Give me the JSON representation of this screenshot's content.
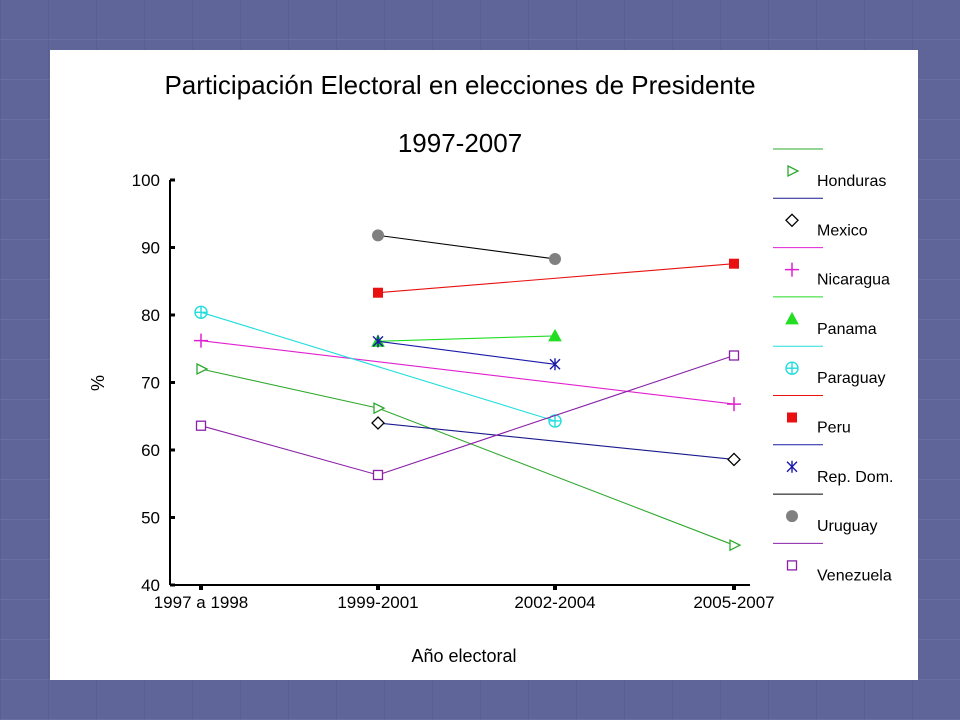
{
  "chart_data": {
    "type": "line",
    "title": "Participación Electoral en elecciones de Presidente",
    "subtitle": "1997-2007",
    "xlabel": "Año electoral",
    "ylabel": "%",
    "categories": [
      "1997 a 1998",
      "1999-2001",
      "2002-2004",
      "2005-2007"
    ],
    "ylim": [
      40,
      100
    ],
    "yticks": [
      40,
      50,
      60,
      70,
      80,
      90,
      100
    ],
    "grid": false,
    "legend_position": "right",
    "series": [
      {
        "name": "Honduras",
        "color": "#2ea82e",
        "marker": "triangle-right-open",
        "values": [
          72.0,
          66.2,
          null,
          45.9
        ]
      },
      {
        "name": "Mexico",
        "color": "#1a1a8c",
        "marker": "diamond-open",
        "values": [
          null,
          64.0,
          null,
          58.6
        ]
      },
      {
        "name": "Nicaragua",
        "color": "#e020d0",
        "marker": "plus",
        "values": [
          76.2,
          null,
          null,
          66.8
        ]
      },
      {
        "name": "Panama",
        "color": "#22dd22",
        "marker": "triangle-up-filled",
        "values": [
          null,
          76.1,
          76.9,
          null
        ]
      },
      {
        "name": "Paraguay",
        "color": "#22dddd",
        "marker": "circle-plus",
        "values": [
          80.4,
          null,
          64.3,
          null
        ]
      },
      {
        "name": "Peru",
        "color": "#e81010",
        "marker": "square-filled",
        "values": [
          null,
          83.3,
          null,
          87.6
        ]
      },
      {
        "name": "Rep. Dom.",
        "color": "#1a1aa8",
        "marker": "star",
        "values": [
          null,
          76.1,
          72.7,
          null
        ]
      },
      {
        "name": "Uruguay",
        "color": "#000000",
        "marker": "circle-filled",
        "values": [
          null,
          91.8,
          88.3,
          null
        ]
      },
      {
        "name": "Venezuela",
        "color": "#8a20a8",
        "marker": "square-open",
        "values": [
          63.6,
          56.3,
          null,
          74.0
        ]
      }
    ]
  }
}
